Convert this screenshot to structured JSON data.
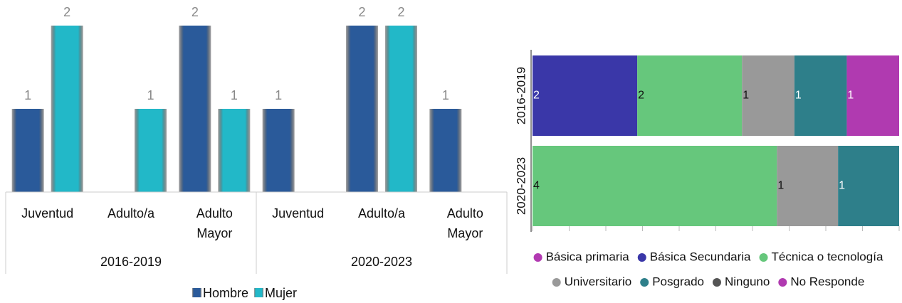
{
  "chart_data": [
    {
      "type": "bar",
      "categories": [
        "Juventud",
        "Adulto/a",
        "Adulto Mayor",
        "Juventud",
        "Adulto/a",
        "Adulto Mayor"
      ],
      "groups": [
        "2016-2019",
        "2020-2023"
      ],
      "series": [
        {
          "name": "Hombre",
          "color": "#2a5a9a",
          "values": [
            1,
            null,
            2,
            1,
            2,
            1
          ]
        },
        {
          "name": "Mujer",
          "color": "#22b8c8",
          "values": [
            2,
            1,
            1,
            null,
            2,
            null
          ]
        }
      ],
      "ylim": [
        0,
        2
      ]
    },
    {
      "type": "bar",
      "horizontal": true,
      "percent": true,
      "categories": [
        "2016-2019",
        "2020-2023"
      ],
      "series": [
        {
          "name": "Básica primaria",
          "color": "#b23ab2",
          "values": [
            0,
            0
          ]
        },
        {
          "name": "Básica Secundaria",
          "color": "#3a37a8",
          "values": [
            2,
            0
          ]
        },
        {
          "name": "Técnica o tecnología",
          "color": "#66c77c",
          "values": [
            2,
            4
          ]
        },
        {
          "name": "Universitario",
          "color": "#999999",
          "values": [
            1,
            1
          ]
        },
        {
          "name": "Posgrado",
          "color": "#2e7f8a",
          "values": [
            1,
            1
          ]
        },
        {
          "name": "Ninguno",
          "color": "#555555",
          "values": [
            0,
            0
          ]
        },
        {
          "name": "No Responde",
          "color": "#b03ab0",
          "values": [
            1,
            0
          ]
        }
      ],
      "xlim": [
        0,
        100
      ],
      "xticks": [
        0,
        10,
        20,
        30,
        40,
        50,
        60,
        70,
        80,
        90,
        100
      ]
    }
  ]
}
